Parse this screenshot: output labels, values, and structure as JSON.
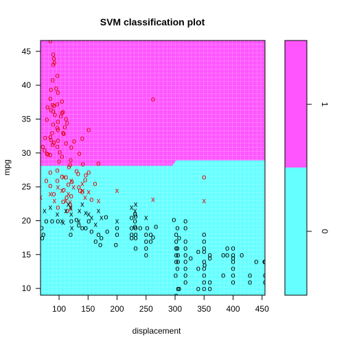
{
  "chart_data": {
    "type": "scatter",
    "title": "SVM classification plot",
    "xlabel": "displacement",
    "ylabel": "mpg",
    "xlim": [
      68,
      455
    ],
    "ylim": [
      9,
      46.6
    ],
    "x_ticks": [
      "100",
      "150",
      "200",
      "250",
      "300",
      "350",
      "400",
      "450"
    ],
    "y_ticks": [
      "10",
      "15",
      "20",
      "25",
      "30",
      "35",
      "40",
      "45"
    ],
    "x_tick_values": [
      100,
      150,
      200,
      250,
      300,
      350,
      400,
      450
    ],
    "y_tick_values": [
      10,
      15,
      20,
      25,
      30,
      35,
      40,
      45
    ],
    "grid": true,
    "legend_ticks": [
      "0",
      "1"
    ],
    "colors": {
      "class_1_region": "#ff55ff",
      "class_0_region": "#66ffff",
      "class_1_marker": "#dd0000",
      "class_0_marker": "#000000",
      "grid": "#ffffff"
    },
    "boundary": [
      [
        68,
        28.1
      ],
      [
        295,
        28.1
      ],
      [
        302,
        28.9
      ],
      [
        455,
        28.9
      ]
    ],
    "markers": {
      "support_vector": "x",
      "other": "o"
    },
    "series": [
      {
        "label": "1",
        "points": [
          [
            85,
            46.6
          ],
          [
            90,
            44.6
          ],
          [
            91,
            44
          ],
          [
            92,
            43.4
          ],
          [
            90,
            43.1
          ],
          [
            97,
            41.5
          ],
          [
            89,
            40.8
          ],
          [
            86,
            39.4
          ],
          [
            98,
            39
          ],
          [
            85,
            38.1
          ],
          [
            105,
            37.7
          ],
          [
            97,
            37.3
          ],
          [
            91,
            37
          ],
          [
            86,
            36.4
          ],
          [
            107,
            36.1
          ],
          [
            105,
            36
          ],
          [
            79,
            35
          ],
          [
            98,
            34.7
          ],
          [
            114,
            34.5
          ],
          [
            90,
            34.3
          ],
          [
            97,
            33.8
          ],
          [
            151,
            33.5
          ],
          [
            107,
            33
          ],
          [
            76,
            32.3
          ],
          [
            86,
            32
          ],
          [
            98,
            31.9
          ],
          [
            112,
            31.5
          ],
          [
            89,
            31.3
          ],
          [
            72,
            31
          ],
          [
            121,
            30.9
          ],
          [
            135,
            30
          ],
          [
            105,
            29.5
          ],
          [
            120,
            29
          ],
          [
            141,
            28.4
          ],
          [
            168,
            28.5
          ],
          [
            262,
            38
          ],
          [
            97,
            31
          ],
          [
            85,
            32.4
          ],
          [
            90,
            36.2
          ],
          [
            79,
            30
          ],
          [
            98,
            33.5
          ],
          [
            89,
            37.2
          ],
          [
            112,
            35.1
          ],
          [
            108,
            32.9
          ],
          [
            91,
            31.6
          ],
          [
            140,
            32.2
          ],
          [
            81,
            29.9
          ],
          [
            100,
            28.8
          ],
          [
            119,
            28.3
          ],
          [
            130,
            27.4
          ],
          [
            146,
            26.8
          ],
          [
            112,
            26.5
          ],
          [
            97,
            26
          ],
          [
            122,
            25.8
          ],
          [
            116,
            25.4
          ],
          [
            134,
            25
          ],
          [
            108,
            24.6
          ],
          [
            140,
            24.3
          ],
          [
            91,
            24
          ],
          [
            121,
            23.7
          ],
          [
            113,
            23.5
          ],
          [
            156,
            23.2
          ],
          [
            107,
            22.9
          ],
          [
            119,
            22.5
          ],
          [
            98,
            22
          ],
          [
            114,
            21.5
          ],
          [
            105,
            26.6
          ],
          [
            151,
            27.2
          ],
          [
            97,
            27.5
          ],
          [
            78,
            26
          ],
          [
            85,
            25.2
          ],
          [
            133,
            27
          ],
          [
            85,
            29.8
          ],
          [
            75,
            30.5
          ],
          [
            88,
            33
          ],
          [
            103,
            35.5
          ],
          [
            95,
            39.6
          ],
          [
            80,
            36.8
          ],
          [
            93,
            35.7
          ],
          [
            110,
            33.9
          ],
          [
            126,
            31.8
          ],
          [
            101,
            30.2
          ],
          [
            117,
            28
          ],
          [
            145,
            26.1
          ],
          [
            162,
            25.5
          ],
          [
            350,
            26.5
          ],
          [
            136,
            24.5
          ],
          [
            85,
            27.2
          ]
        ]
      },
      {
        "label": "1 (support vectors)",
        "points": [
          [
            68,
            23.5
          ],
          [
            85,
            24
          ],
          [
            92,
            23
          ],
          [
            98,
            25
          ],
          [
            105,
            24.5
          ],
          [
            112,
            23
          ],
          [
            116,
            24
          ],
          [
            119,
            22.8
          ],
          [
            120,
            21.8
          ],
          [
            140,
            25.5
          ],
          [
            141,
            24.5
          ],
          [
            145,
            23.5
          ],
          [
            151,
            24.3
          ],
          [
            168,
            23
          ],
          [
            200,
            24.5
          ],
          [
            262,
            23.2
          ],
          [
            350,
            23
          ],
          [
            121,
            26
          ],
          [
            108,
            26.5
          ],
          [
            125,
            25
          ]
        ]
      },
      {
        "label": "0 (support vectors)",
        "points": [
          [
            75,
            21.5
          ],
          [
            85,
            22
          ],
          [
            97,
            21
          ],
          [
            105,
            20
          ],
          [
            112,
            21.5
          ],
          [
            116,
            22.5
          ],
          [
            120,
            22
          ],
          [
            121,
            21
          ],
          [
            122,
            19
          ],
          [
            134,
            20
          ],
          [
            135,
            21.5
          ],
          [
            140,
            22.5
          ],
          [
            146,
            21.2
          ],
          [
            151,
            21
          ],
          [
            156,
            20.5
          ],
          [
            163,
            19.5
          ],
          [
            168,
            21.5
          ],
          [
            173,
            20.5
          ],
          [
            200,
            20
          ],
          [
            225,
            22
          ],
          [
            231,
            21.5
          ],
          [
            232,
            22.5
          ],
          [
            250,
            20.5
          ],
          [
            107,
            19.8
          ]
        ]
      },
      {
        "label": "0",
        "points": [
          [
            70,
            19
          ],
          [
            71,
            17.5
          ],
          [
            73,
            18
          ],
          [
            78,
            20
          ],
          [
            88,
            20
          ],
          [
            98,
            20
          ],
          [
            120,
            18
          ],
          [
            121,
            20
          ],
          [
            130,
            20.2
          ],
          [
            134,
            19.4
          ],
          [
            140,
            19
          ],
          [
            146,
            19
          ],
          [
            151,
            20
          ],
          [
            156,
            18.5
          ],
          [
            163,
            17
          ],
          [
            168,
            18
          ],
          [
            171,
            16.5
          ],
          [
            173,
            17.5
          ],
          [
            181,
            20.6
          ],
          [
            183,
            18.5
          ],
          [
            198,
            16.5
          ],
          [
            200,
            19
          ],
          [
            200,
            18
          ],
          [
            225,
            17.5
          ],
          [
            225,
            18
          ],
          [
            225,
            19
          ],
          [
            225,
            20.5
          ],
          [
            231,
            19.2
          ],
          [
            231,
            20
          ],
          [
            232,
            19
          ],
          [
            232,
            18
          ],
          [
            232,
            17.5
          ],
          [
            232,
            20.7
          ],
          [
            232,
            16
          ],
          [
            240,
            19
          ],
          [
            250,
            18
          ],
          [
            250,
            16
          ],
          [
            250,
            15
          ],
          [
            250,
            17
          ],
          [
            252,
            19
          ],
          [
            258,
            18
          ],
          [
            258,
            17
          ],
          [
            262,
            17.6
          ],
          [
            267,
            19.2
          ],
          [
            298,
            20.2
          ],
          [
            302,
            17
          ],
          [
            302,
            16
          ],
          [
            302,
            15
          ],
          [
            304,
            16
          ],
          [
            305,
            15
          ],
          [
            307,
            17.5
          ],
          [
            305,
            14
          ],
          [
            302,
            14
          ],
          [
            318,
            20
          ],
          [
            318,
            19
          ],
          [
            318,
            16
          ],
          [
            318,
            15
          ],
          [
            318,
            14
          ],
          [
            305,
            10
          ],
          [
            302,
            9
          ],
          [
            304,
            13
          ],
          [
            301,
            12
          ],
          [
            318,
            13
          ],
          [
            318,
            12
          ],
          [
            327,
            14.5
          ],
          [
            340,
            15.5
          ],
          [
            340,
            13
          ],
          [
            350,
            17
          ],
          [
            350,
            16
          ],
          [
            350,
            15.5
          ],
          [
            350,
            14
          ],
          [
            350,
            13
          ],
          [
            350,
            12
          ],
          [
            350,
            11
          ],
          [
            350,
            10
          ],
          [
            351,
            13.5
          ],
          [
            360,
            15
          ],
          [
            360,
            14.5
          ],
          [
            360,
            11
          ],
          [
            360,
            10
          ],
          [
            383,
            15
          ],
          [
            390,
            15
          ],
          [
            400,
            16
          ],
          [
            400,
            15
          ],
          [
            400,
            14
          ],
          [
            400,
            13
          ],
          [
            400,
            12
          ],
          [
            400,
            11
          ],
          [
            400,
            14.5
          ],
          [
            415,
            15
          ],
          [
            429,
            11
          ],
          [
            440,
            14
          ],
          [
            455,
            14
          ],
          [
            455,
            12
          ],
          [
            454,
            14
          ],
          [
            429,
            12
          ],
          [
            318,
            17
          ],
          [
            302,
            18
          ],
          [
            350,
            18
          ],
          [
            307,
            10
          ],
          [
            340,
            10
          ],
          [
            318,
            11
          ],
          [
            383,
            12
          ],
          [
            390,
            16
          ],
          [
            455,
            11
          ],
          [
            304,
            19
          ],
          [
            231,
            21
          ]
        ]
      }
    ]
  }
}
